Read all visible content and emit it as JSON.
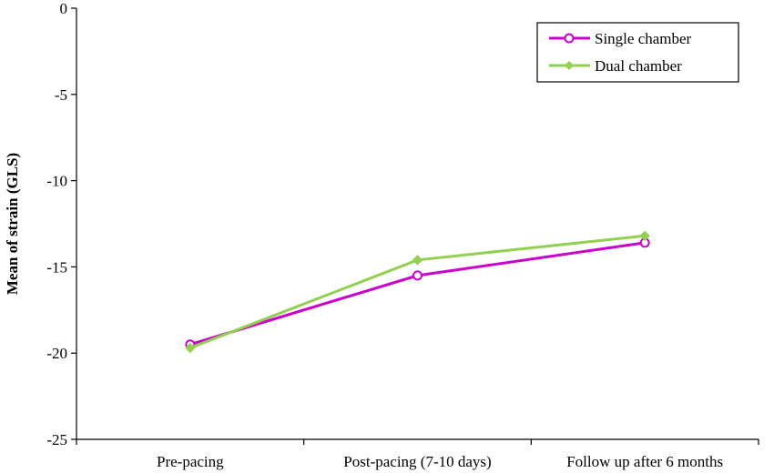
{
  "chart_data": {
    "type": "line",
    "title": "",
    "xlabel": "",
    "ylabel": "Mean of strain (GLS)",
    "categories": [
      "Pre-pacing",
      "Post-pacing (7-10 days)",
      "Follow up after 6 months"
    ],
    "ylim": [
      -25,
      0
    ],
    "yticks": [
      0,
      -5,
      -10,
      -15,
      -20,
      -25
    ],
    "grid": false,
    "legend_position": "top-right",
    "series": [
      {
        "name": "Single chamber",
        "values": [
          -19.5,
          -15.5,
          -13.6
        ],
        "color": "#cc00cc",
        "marker": "circle-open"
      },
      {
        "name": "Dual chamber",
        "values": [
          -19.7,
          -14.6,
          -13.2
        ],
        "color": "#92d050",
        "marker": "diamond"
      }
    ]
  }
}
